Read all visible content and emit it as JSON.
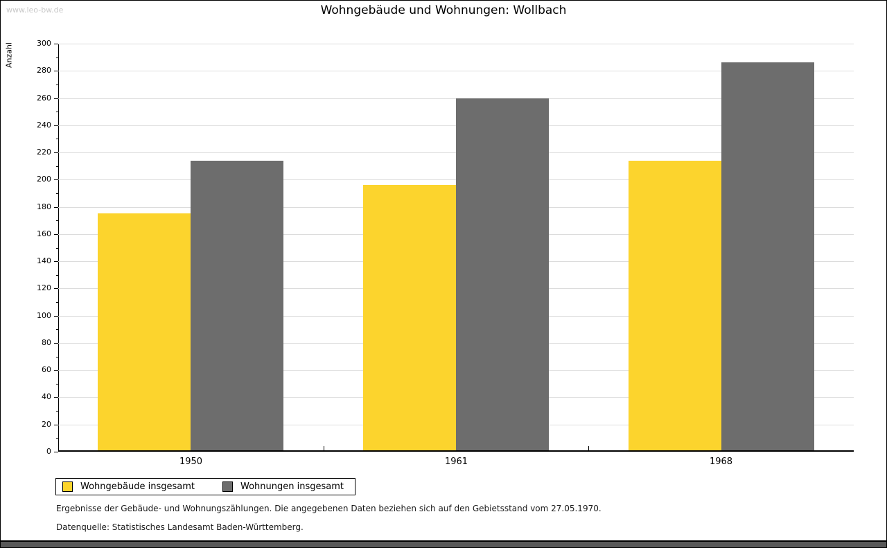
{
  "watermark": "www.leo-bw.de",
  "title": "Wohngebäude und Wohnungen: Wollbach",
  "chart_data": {
    "type": "bar",
    "title": "Wohngebäude und Wohnungen: Wollbach",
    "categories": [
      "1950",
      "1961",
      "1968"
    ],
    "series": [
      {
        "name": "Wohngebäude insgesamt",
        "color": "#FCD42D",
        "values": [
          175,
          196,
          214
        ]
      },
      {
        "name": "Wohnungen insgesamt",
        "color": "#6D6D6D",
        "values": [
          214,
          260,
          286
        ]
      }
    ],
    "xlabel": "",
    "ylabel": "Anzahl",
    "ylim": [
      0,
      300
    ],
    "ytick_step": 20,
    "yminor_step": 10,
    "grid": true,
    "gridline_color": "#dcdcdc",
    "legend_position": "bottom-left"
  },
  "footer": {
    "line1": "Ergebnisse der Gebäude- und Wohnungszählungen. Die angegebenen Daten beziehen sich auf den Gebietsstand vom 27.05.1970.",
    "line2": "Datenquelle: Statistisches Landesamt Baden-Württemberg."
  }
}
